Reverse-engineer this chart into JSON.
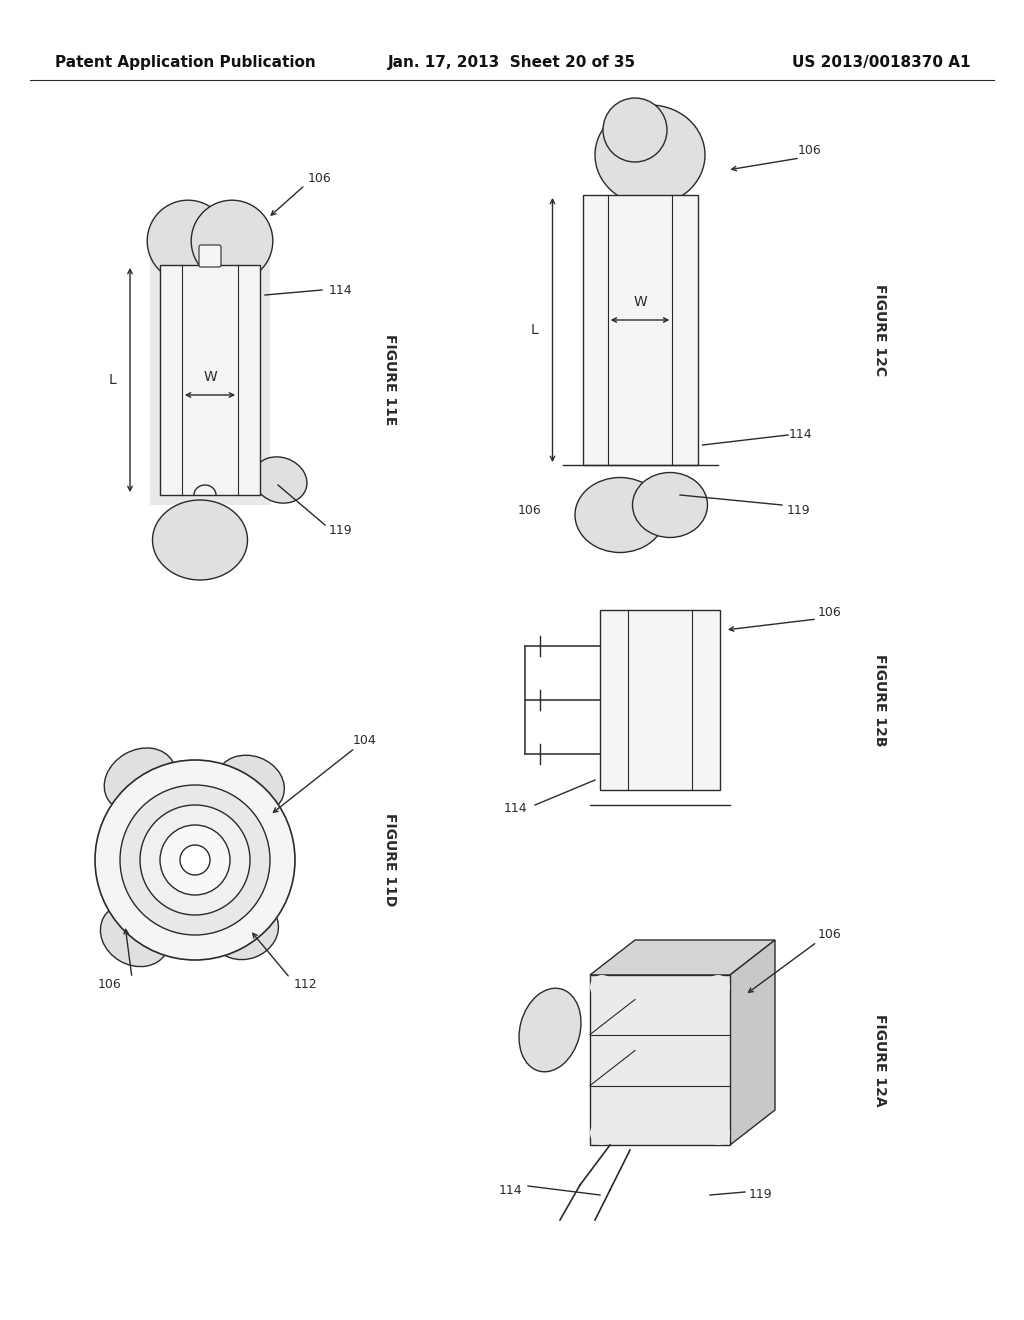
{
  "background_color": "#ffffff",
  "header_left": "Patent Application Publication",
  "header_center": "Jan. 17, 2013  Sheet 20 of 35",
  "header_right": "US 2013/0018370 A1",
  "header_fontsize": 11,
  "callout_fontsize": 9,
  "figure_label_fontsize": 10,
  "line_color": "#2a2a2a",
  "fill_light": "#e0e0e0",
  "fill_white": "#f5f5f5",
  "line_width": 1.0
}
